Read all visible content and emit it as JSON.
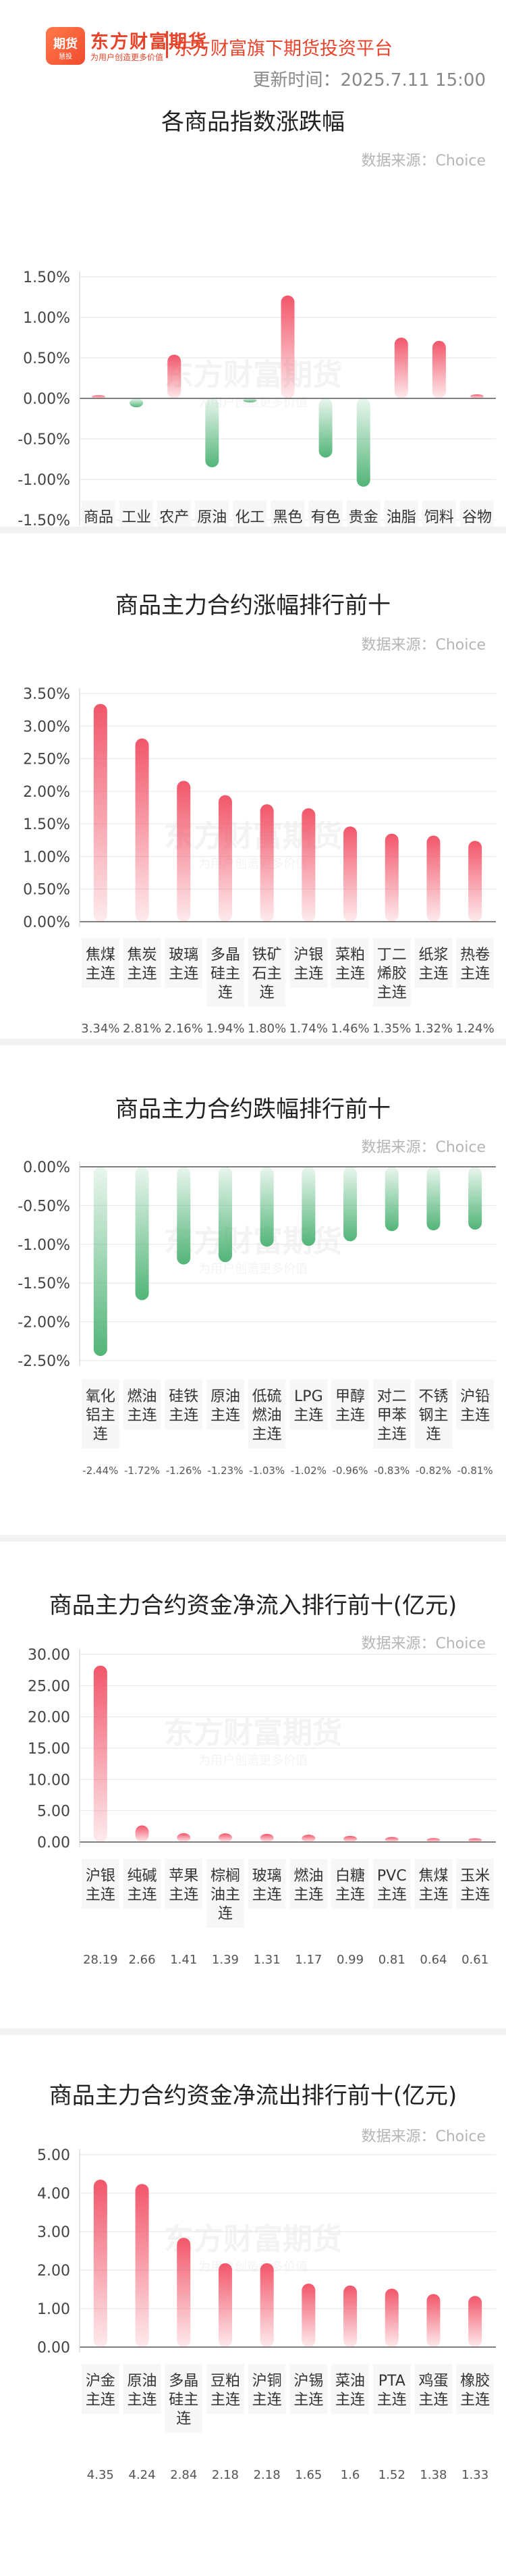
{
  "header": {
    "logo_glyph": "期货",
    "logo_sub": "慧投",
    "logo_name": "东方财富期货",
    "logo_slogan": "为用户创造更多价值",
    "platform": "东方财富旗下期货投资平台",
    "update_time": "更新时间：2025.7.11 15:00"
  },
  "colors": {
    "up": "#f2566a",
    "down": "#52b578",
    "axis": "#555555",
    "grid": "#e6e6e6"
  },
  "watermark": {
    "name": "东方财富期货",
    "slogan": "为用户创造更多价值"
  },
  "chart_data": [
    {
      "type": "bar",
      "title": "各商品指数涨跌幅",
      "source": "数据来源：Choice",
      "categories": [
        "商品综合",
        "工业品",
        "农产品",
        "原油",
        "化工",
        "黑色",
        "有色",
        "贵金属",
        "油脂",
        "饲料",
        "谷物"
      ],
      "values": [
        0.04,
        -0.11,
        0.54,
        -0.85,
        -0.05,
        1.27,
        -0.73,
        -1.09,
        0.75,
        0.71,
        0.05
      ],
      "value_labels": [
        "0.04%",
        "-0.11%",
        "0.54%",
        "-0.85%",
        "-0.05%",
        "1.27%",
        "-0.73%",
        "-1.09%",
        "0.75%",
        "0.71%",
        "0.05%"
      ],
      "yticks": [
        "1.50%",
        "1.00%",
        "0.50%",
        "0.00%",
        "-0.50%",
        "-1.00%",
        "-1.50%"
      ],
      "ylim": [
        -1.5,
        1.5
      ],
      "grid": true
    },
    {
      "type": "bar",
      "title": "商品主力合约涨幅排行前十",
      "source": "数据来源：Choice",
      "categories": [
        "焦煤主连",
        "焦炭主连",
        "玻璃主连",
        "多晶硅主连",
        "铁矿石主连",
        "沪银主连",
        "菜粕主连",
        "丁二烯胶主连",
        "纸浆主连",
        "热卷主连"
      ],
      "values": [
        3.34,
        2.81,
        2.16,
        1.94,
        1.8,
        1.74,
        1.46,
        1.35,
        1.32,
        1.24
      ],
      "value_labels": [
        "3.34%",
        "2.81%",
        "2.16%",
        "1.94%",
        "1.80%",
        "1.74%",
        "1.46%",
        "1.35%",
        "1.32%",
        "1.24%"
      ],
      "yticks": [
        "3.50%",
        "3.00%",
        "2.50%",
        "2.00%",
        "1.50%",
        "1.00%",
        "0.50%",
        "0.00%"
      ],
      "ylim": [
        0,
        3.5
      ],
      "grid": true
    },
    {
      "type": "bar",
      "title": "商品主力合约跌幅排行前十",
      "source": "数据来源：Choice",
      "categories": [
        "氧化铝主连",
        "燃油主连",
        "硅铁主连",
        "原油主连",
        "低硫燃油主连",
        "LPG主连",
        "甲醇主连",
        "对二甲苯主连",
        "不锈钢主连",
        "沪铅主连"
      ],
      "values": [
        -2.44,
        -1.72,
        -1.26,
        -1.23,
        -1.03,
        -1.02,
        -0.96,
        -0.83,
        -0.82,
        -0.81
      ],
      "value_labels": [
        "-2.44%",
        "-1.72%",
        "-1.26%",
        "-1.23%",
        "-1.03%",
        "-1.02%",
        "-0.96%",
        "-0.83%",
        "-0.82%",
        "-0.81%"
      ],
      "yticks": [
        "0.00%",
        "-0.50%",
        "-1.00%",
        "-1.50%",
        "-2.00%",
        "-2.50%"
      ],
      "ylim": [
        -2.5,
        0
      ],
      "grid": true
    },
    {
      "type": "bar",
      "title": "商品主力合约资金净流入排行前十(亿元)",
      "source": "数据来源：Choice",
      "categories": [
        "沪银主连",
        "纯碱主连",
        "苹果主连",
        "棕榈油主连",
        "玻璃主连",
        "燃油主连",
        "白糖主连",
        "PVC主连",
        "焦煤主连",
        "玉米主连"
      ],
      "values": [
        28.19,
        2.66,
        1.41,
        1.39,
        1.31,
        1.17,
        0.99,
        0.81,
        0.64,
        0.61
      ],
      "value_labels": [
        "28.19",
        "2.66",
        "1.41",
        "1.39",
        "1.31",
        "1.17",
        "0.99",
        "0.81",
        "0.64",
        "0.61"
      ],
      "yticks": [
        "30.00",
        "25.00",
        "20.00",
        "15.00",
        "10.00",
        "5.00",
        "0.00"
      ],
      "ylim": [
        0,
        30
      ],
      "grid": true
    },
    {
      "type": "bar",
      "title": "商品主力合约资金净流出排行前十(亿元)",
      "source": "数据来源：Choice",
      "categories": [
        "沪金主连",
        "原油主连",
        "多晶硅主连",
        "豆粕主连",
        "沪铜主连",
        "沪锡主连",
        "菜油主连",
        "PTA主连",
        "鸡蛋主连",
        "橡胶主连"
      ],
      "values": [
        4.35,
        4.24,
        2.84,
        2.18,
        2.18,
        1.65,
        1.6,
        1.52,
        1.38,
        1.33
      ],
      "value_labels": [
        "4.35",
        "4.24",
        "2.84",
        "2.18",
        "2.18",
        "1.65",
        "1.6",
        "1.52",
        "1.38",
        "1.33"
      ],
      "yticks": [
        "5.00",
        "4.00",
        "3.00",
        "2.00",
        "1.00",
        "0.00"
      ],
      "ylim": [
        0,
        5
      ],
      "grid": true
    }
  ]
}
